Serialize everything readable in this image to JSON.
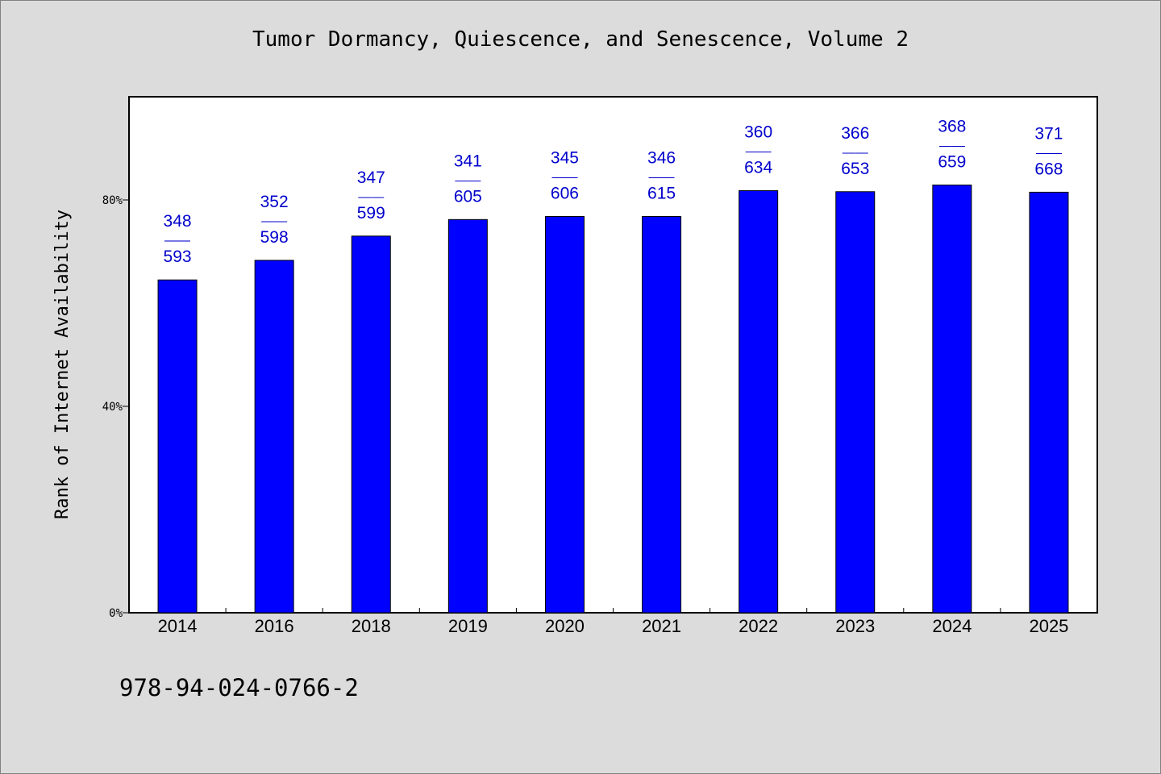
{
  "chart_data": {
    "type": "bar",
    "title": "Tumor Dormancy, Quiescence, and Senescence, Volume 2",
    "xlabel": "",
    "ylabel": "Rank of Internet Availability",
    "categories": [
      "2014",
      "2016",
      "2018",
      "2019",
      "2020",
      "2021",
      "2022",
      "2023",
      "2024",
      "2025"
    ],
    "series": [
      {
        "values": [
          64.5,
          68.3,
          73.0,
          76.2,
          76.8,
          76.8,
          81.8,
          81.6,
          82.9,
          81.5
        ]
      }
    ],
    "data_labels": [
      {
        "top": "348",
        "mid": "——",
        "bottom": "593"
      },
      {
        "top": "352",
        "mid": "——",
        "bottom": "598"
      },
      {
        "top": "347",
        "mid": "——",
        "bottom": "599"
      },
      {
        "top": "341",
        "mid": "——",
        "bottom": "605"
      },
      {
        "top": "345",
        "mid": "——",
        "bottom": "606"
      },
      {
        "top": "346",
        "mid": "——",
        "bottom": "615"
      },
      {
        "top": "360",
        "mid": "——",
        "bottom": "634"
      },
      {
        "top": "366",
        "mid": "——",
        "bottom": "653"
      },
      {
        "top": "368",
        "mid": "——",
        "bottom": "659"
      },
      {
        "top": "371",
        "mid": "——",
        "bottom": "668"
      }
    ],
    "yticks": [
      0,
      40,
      80
    ],
    "ytick_labels": [
      "0%",
      "40%",
      "80%"
    ],
    "ylim": [
      0,
      100
    ],
    "grid": false,
    "legend": "none",
    "colors": {
      "bar": "#0000ff",
      "label": "#0000cc",
      "plot_bg": "#ffffff",
      "page_bg": "#dcdcdc"
    }
  },
  "footer": {
    "isbn": "978-94-024-0766-2"
  }
}
